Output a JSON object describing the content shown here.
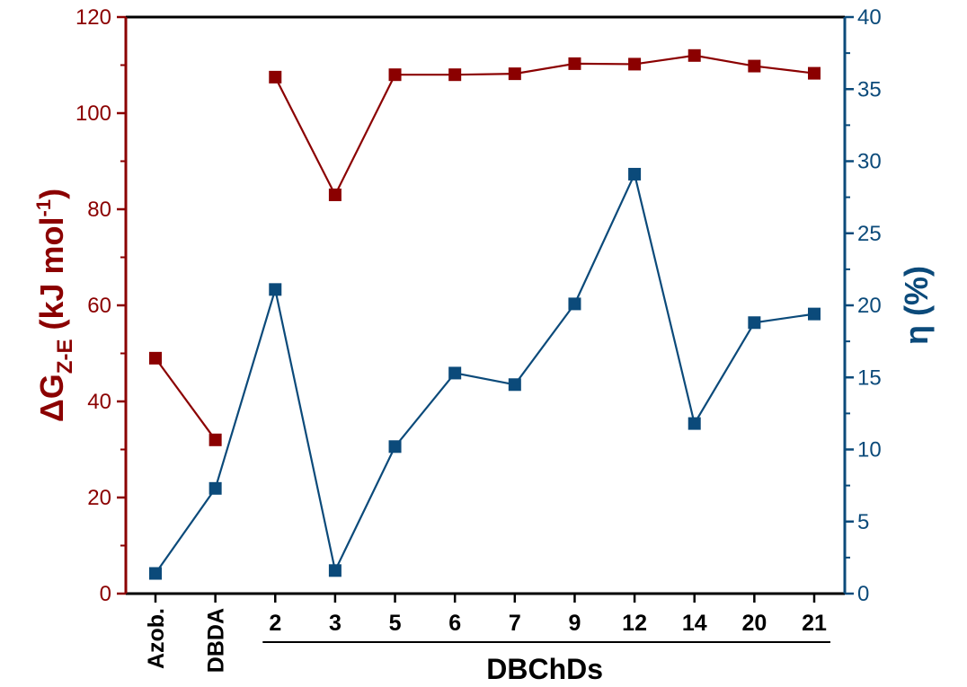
{
  "chart_data": {
    "type": "line",
    "categories": [
      "Azob.",
      "DBDA",
      "2",
      "3",
      "5",
      "6",
      "7",
      "9",
      "12",
      "14",
      "20",
      "21"
    ],
    "rotated_categories": [
      "Azob.",
      "DBDA"
    ],
    "group_label": "DBChDs",
    "group_start": "2",
    "group_end": "21",
    "left_axis": {
      "label_main": "ΔG",
      "label_sub": "Z-E",
      "label_unit_pre": " (kJ mol",
      "label_sup": "-1",
      "label_unit_post": ")",
      "ylim": [
        0,
        120
      ],
      "ticks": [
        0,
        20,
        40,
        60,
        80,
        100,
        120
      ],
      "color": "#8B0000"
    },
    "right_axis": {
      "label": "η (%)",
      "ylim": [
        0,
        40
      ],
      "ticks": [
        0,
        5,
        10,
        15,
        20,
        25,
        30,
        35,
        40
      ],
      "color": "#0B4A7A"
    },
    "series": [
      {
        "axis": "left",
        "color": "#8B0000",
        "values": [
          49,
          32,
          107.5,
          83,
          108,
          108,
          108.2,
          110.3,
          110.2,
          112,
          109.8,
          108.3
        ],
        "connected": [
          [
            0,
            1
          ],
          [
            2,
            11
          ]
        ]
      },
      {
        "axis": "right",
        "color": "#0B4A7A",
        "values": [
          1.4,
          7.3,
          21.1,
          1.6,
          10.2,
          15.3,
          14.5,
          20.1,
          29.1,
          11.8,
          18.8,
          19.4
        ],
        "connected": [
          [
            0,
            11
          ]
        ]
      }
    ],
    "grid": false
  }
}
